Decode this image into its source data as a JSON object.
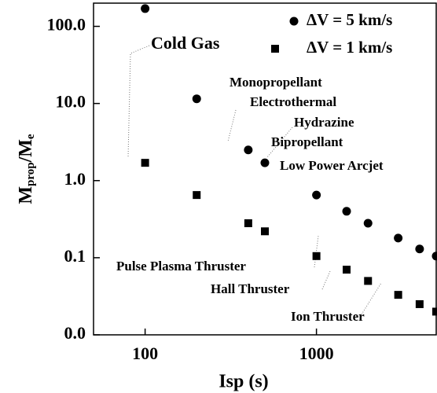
{
  "chart_data": {
    "type": "scatter",
    "x_label": "Isp (s)",
    "y_label": [
      "M",
      "prop",
      "/M",
      "e"
    ],
    "x": [
      100,
      200,
      400,
      500,
      1000,
      1500,
      2000,
      3000,
      4000,
      5000
    ],
    "series": [
      {
        "name": "ΔV = 5 km/s",
        "marker": "circle",
        "color": "#000000",
        "values": [
          170,
          11.5,
          2.5,
          1.7,
          0.65,
          0.4,
          0.28,
          0.18,
          0.13,
          0.105
        ]
      },
      {
        "name": "ΔV = 1 km/s",
        "marker": "square",
        "color": "#000000",
        "values": [
          1.7,
          0.65,
          0.28,
          0.22,
          0.105,
          0.07,
          0.05,
          0.033,
          0.025,
          0.02
        ]
      }
    ],
    "xlim": [
      50,
      5000
    ],
    "ylim": [
      0.01,
      200
    ],
    "log_x": true,
    "log_y": true,
    "xticks": [
      100,
      1000
    ],
    "yticks": [
      {
        "value": 100,
        "label": "100.0"
      },
      {
        "value": 10,
        "label": "10.0"
      },
      {
        "value": 1,
        "label": "1.0"
      },
      {
        "value": 0.1,
        "label": "0.1"
      },
      {
        "value": 0.01,
        "label": "0.0"
      }
    ],
    "annotations": [
      "Cold Gas",
      "Monopropellant",
      "Electrothermal",
      "Hydrazine",
      "Bipropellant",
      "Low Power Arcjet",
      "Pulse Plasma Thruster",
      "Hall Thruster",
      "Ion Thruster"
    ]
  }
}
